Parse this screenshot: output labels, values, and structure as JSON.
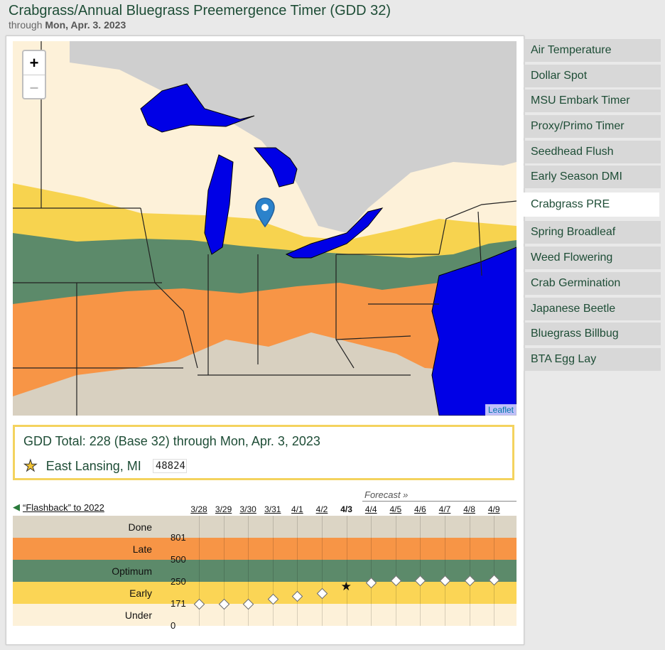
{
  "header": {
    "title": "Crabgrass/Annual Bluegrass Preemergence Timer (GDD 32)",
    "through_label": "through",
    "through_date": "Mon, Apr. 3. 2023"
  },
  "map": {
    "zoom_in": "+",
    "zoom_out": "–",
    "attribution": "Leaflet"
  },
  "info": {
    "gdd_text": "GDD Total: 228 (Base 32) through Mon, Apr. 3, 2023",
    "location": "East Lansing, MI",
    "zip": "48824"
  },
  "flashback": "“Flashback” to 2022",
  "forecast_label": "Forecast »",
  "timeline": {
    "dates": [
      "3/28",
      "3/29",
      "3/30",
      "3/31",
      "4/1",
      "4/2",
      "4/3",
      "4/4",
      "4/5",
      "4/6",
      "4/7",
      "4/8",
      "4/9"
    ],
    "current_date": "4/3",
    "gdd_values": [
      172,
      172,
      172,
      188,
      200,
      210,
      228,
      247,
      265,
      266,
      266,
      268,
      275
    ],
    "bands": [
      {
        "label": "Done",
        "color": "#dcd5c5"
      },
      {
        "label": "Late",
        "color": "#f79546"
      },
      {
        "label": "Optimum",
        "color": "#5c8a6a"
      },
      {
        "label": "Early",
        "color": "#fbd555"
      },
      {
        "label": "Under",
        "color": "#fdf1d9"
      }
    ],
    "thresholds": [
      "801",
      "500",
      "250",
      "171",
      "0"
    ]
  },
  "sidebar": {
    "items": [
      "Air Temperature",
      "Dollar Spot",
      "MSU Embark Timer",
      "Proxy/Primo Timer",
      "Seedhead Flush",
      "Early Season DMI",
      "Crabgrass PRE",
      "Spring Broadleaf",
      "Weed Flowering",
      "Crab Germination",
      "Japanese Beetle",
      "Bluegrass Billbug",
      "BTA Egg Lay"
    ],
    "active": "Crabgrass PRE"
  },
  "colors": {
    "water": "#0000e6",
    "under": "#fdf1d9",
    "early": "#f7d34f",
    "optimum": "#5c8a6a",
    "late": "#f79546",
    "done": "#d8d0c0",
    "canada": "#cfcfcf"
  }
}
